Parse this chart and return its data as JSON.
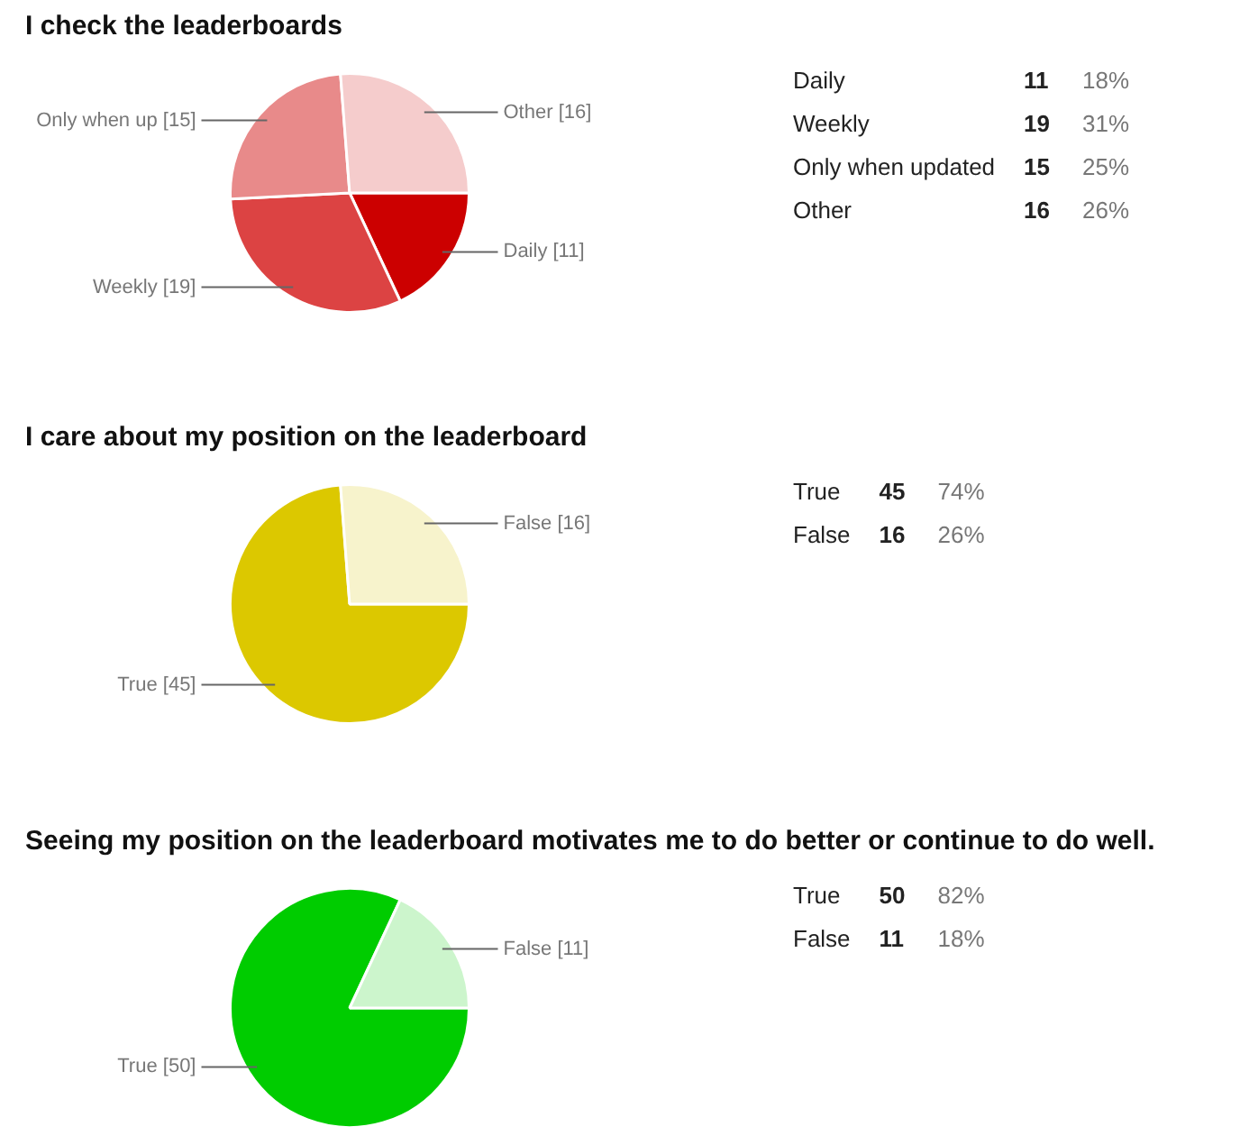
{
  "chart_data": [
    {
      "type": "pie",
      "title": "I check the leaderboards",
      "categories": [
        "Daily",
        "Weekly",
        "Only when up",
        "Other"
      ],
      "values": [
        11,
        19,
        15,
        16
      ],
      "colors": [
        "#cc0000",
        "#dc4343",
        "#e88a8a",
        "#f5cccc"
      ],
      "value_labels": [
        "[11]",
        "[19]",
        "[15]",
        "[16]"
      ]
    },
    {
      "type": "other",
      "annotations": [
        "Daily",
        "11",
        "18%",
        "Weekly",
        "19",
        "31%",
        "Only when updated",
        "15",
        "25%",
        "Other",
        "16",
        "26%"
      ]
    },
    {
      "type": "pie",
      "title": "I care about my position on the leaderboard",
      "categories": [
        "True",
        "False"
      ],
      "values": [
        45,
        16
      ],
      "colors": [
        "#dcc800",
        "#f7f3cc"
      ],
      "value_labels": [
        "[45]",
        "[16]"
      ]
    },
    {
      "type": "other",
      "annotations": [
        "True",
        "45",
        "74%",
        "False",
        "16",
        "26%"
      ]
    },
    {
      "type": "pie",
      "title": "Seeing my position on the leaderboard motivates me to do better or continue to do well.",
      "categories": [
        "True",
        "False"
      ],
      "values": [
        50,
        11
      ],
      "colors": [
        "#00cc00",
        "#ccf5cc"
      ],
      "value_labels": [
        "[50]",
        "[11]"
      ]
    },
    {
      "type": "other",
      "annotations": [
        "True",
        "50",
        "82%",
        "False",
        "11",
        "18%"
      ]
    }
  ]
}
